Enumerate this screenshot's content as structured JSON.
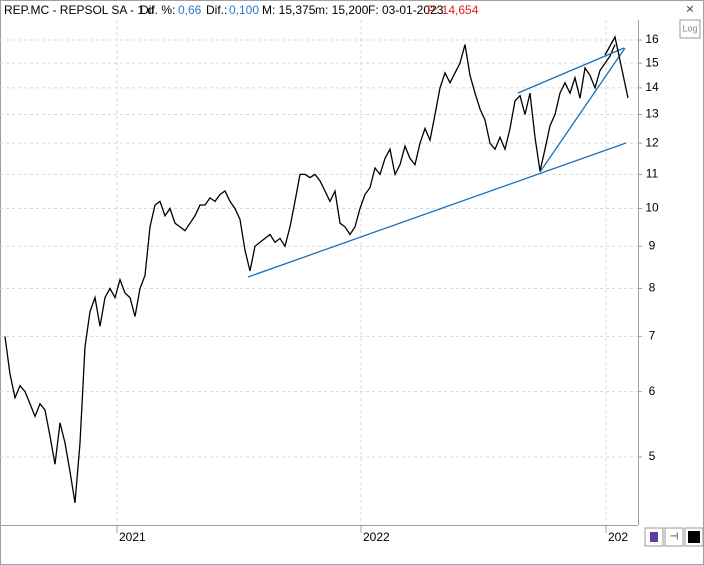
{
  "header": {
    "symbol": "REP.MC - REPSOL SA - 1 d",
    "diff_pct_label": "Dif. %:",
    "diff_pct": "0,66",
    "diff_label": "Dif.:",
    "diff": "0,100",
    "max": "M: 15,375",
    "min": "m: 15,200",
    "date": "F: 03-01-2023",
    "price": "P: 14,654"
  },
  "log_button": "Log",
  "chart_data": {
    "type": "line",
    "log_scale": true,
    "grid": true,
    "color": "#000000",
    "values": [
      7.0,
      6.3,
      5.9,
      6.1,
      6.0,
      5.8,
      5.6,
      5.8,
      5.7,
      5.3,
      4.9,
      5.5,
      5.2,
      4.8,
      4.4,
      5.2,
      6.8,
      7.5,
      7.8,
      7.2,
      7.8,
      8.0,
      7.8,
      8.2,
      7.9,
      7.8,
      7.4,
      8.0,
      8.3,
      9.5,
      10.1,
      10.2,
      9.8,
      10.0,
      9.6,
      9.5,
      9.4,
      9.6,
      9.8,
      10.1,
      10.1,
      10.3,
      10.2,
      10.4,
      10.5,
      10.2,
      10.0,
      9.7,
      8.9,
      8.4,
      9.0,
      9.1,
      9.2,
      9.3,
      9.1,
      9.2,
      9.0,
      9.5,
      10.2,
      11.0,
      11.0,
      10.9,
      11.0,
      10.8,
      10.5,
      10.2,
      10.5,
      9.6,
      9.5,
      9.3,
      9.5,
      10.0,
      10.4,
      10.6,
      11.2,
      11.0,
      11.5,
      11.8,
      11.0,
      11.3,
      11.9,
      11.5,
      11.3,
      12.0,
      12.5,
      12.1,
      13.0,
      14.0,
      14.6,
      14.2,
      14.6,
      15.0,
      15.8,
      14.5,
      13.8,
      13.2,
      12.8,
      12.0,
      11.8,
      12.2,
      11.8,
      12.5,
      13.5,
      13.7,
      13.0,
      13.8,
      12.2,
      11.1,
      11.8,
      12.6,
      13.0,
      13.8,
      14.2,
      13.8,
      14.4,
      13.6,
      14.8,
      14.5,
      14.0,
      14.7,
      15.0,
      15.3,
      15.8
    ],
    "xlim": [
      -1,
      126.6
    ],
    "xticks": [
      {
        "value": 22.4,
        "label": "2021"
      },
      {
        "value": 71.2,
        "label": "2022"
      },
      {
        "value": 120.2,
        "label": "202"
      }
    ],
    "ylim": [
      4.136,
      16.92
    ],
    "yticks": [
      5,
      6,
      7,
      8,
      9,
      10,
      11,
      12,
      13,
      14,
      15,
      16
    ]
  }
}
